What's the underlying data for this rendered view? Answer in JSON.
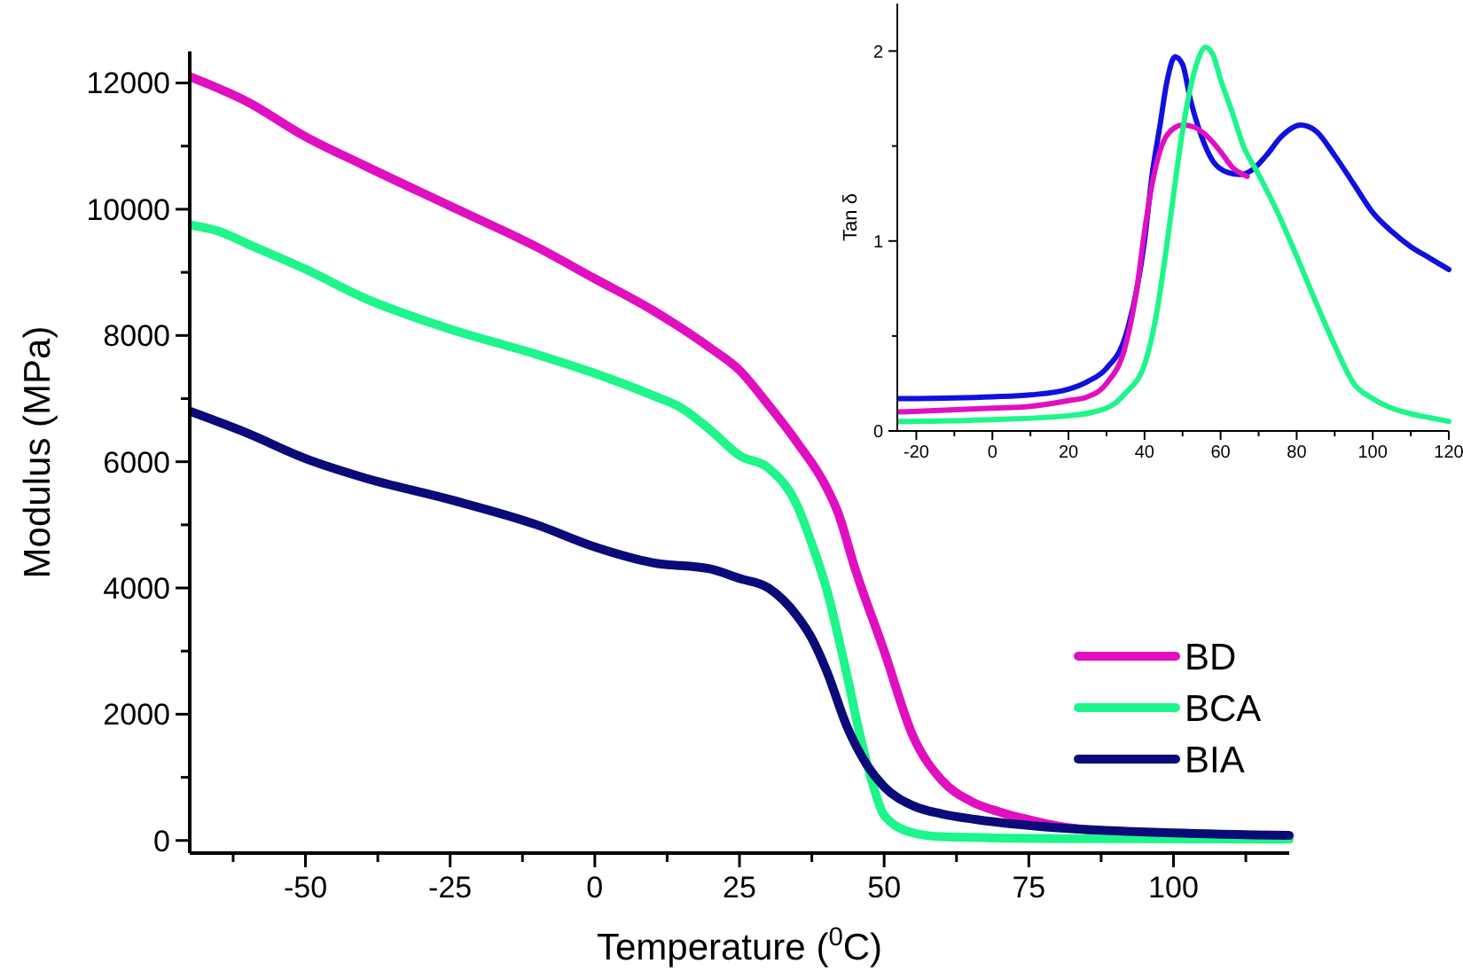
{
  "chart_data": [
    {
      "type": "line",
      "xlabel": "Temperature ($^{0}$C)",
      "ylabel": "Modulus (MPa)",
      "xlim": [
        -70,
        120
      ],
      "ylim": [
        -200,
        12500
      ],
      "xticks": [
        {
          "value": -62.5,
          "label": null
        },
        -50,
        {
          "value": -37.5,
          "label": null
        },
        -25,
        {
          "value": -12.5,
          "label": null
        },
        0,
        {
          "value": 12.5,
          "label": null
        },
        25,
        {
          "value": 37.5,
          "label": null
        },
        50,
        {
          "value": 62.5,
          "label": null
        },
        75,
        {
          "value": 87.5,
          "label": null
        },
        100,
        {
          "value": 112.5,
          "label": null
        }
      ],
      "yticks": [
        0,
        {
          "value": 1000,
          "label": null
        },
        2000,
        {
          "value": 3000,
          "label": null
        },
        4000,
        {
          "value": 5000,
          "label": null
        },
        6000,
        {
          "value": 7000,
          "label": null
        },
        8000,
        {
          "value": 9000,
          "label": null
        },
        10000,
        {
          "value": 11000,
          "label": null
        },
        12000
      ],
      "legend": "right",
      "grid": false,
      "series": [
        {
          "name": "BD",
          "color": "#e010c0",
          "x": [
            -70,
            -60,
            -50,
            -40,
            -25,
            -10,
            0,
            10,
            20,
            25,
            30,
            35,
            40,
            42,
            45,
            50,
            55,
            60,
            65,
            70,
            75,
            80,
            90
          ],
          "values": [
            12100,
            11700,
            11150,
            10700,
            10050,
            9400,
            8900,
            8400,
            7800,
            7450,
            6900,
            6300,
            5600,
            5200,
            4300,
            3000,
            1650,
            950,
            620,
            450,
            330,
            230,
            130
          ]
        },
        {
          "name": "BCA",
          "color": "#1ef58a",
          "x": [
            -70,
            -65,
            -60,
            -50,
            -40,
            -25,
            -10,
            0,
            10,
            15,
            20,
            25,
            30,
            35,
            37.5,
            40,
            43.5,
            46,
            48,
            50,
            55,
            60,
            80,
            120
          ],
          "values": [
            9750,
            9650,
            9450,
            9050,
            8600,
            8100,
            7700,
            7400,
            7050,
            6850,
            6500,
            6100,
            5900,
            5300,
            4700,
            4000,
            2650,
            1600,
            900,
            400,
            120,
            60,
            30,
            20
          ]
        },
        {
          "name": "BIA",
          "color": "#0a0a78",
          "x": [
            -70,
            -60,
            -50,
            -40,
            -25,
            -10,
            0,
            10,
            20,
            25,
            30,
            35,
            37.5,
            40,
            43.6,
            47,
            50,
            55,
            60,
            66,
            80,
            100,
            120
          ],
          "values": [
            6800,
            6450,
            6050,
            5750,
            5400,
            5000,
            4650,
            4400,
            4300,
            4150,
            4000,
            3550,
            3200,
            2700,
            1800,
            1200,
            850,
            550,
            420,
            330,
            200,
            120,
            80
          ]
        }
      ]
    },
    {
      "type": "line",
      "ylabel": "Tan δ",
      "xlim": [
        -25,
        120
      ],
      "ylim": [
        0,
        2.25
      ],
      "xticks": [
        -20,
        {
          "value": -10,
          "label": null
        },
        0,
        {
          "value": 10,
          "label": null
        },
        20,
        {
          "value": 30,
          "label": null
        },
        40,
        {
          "value": 50,
          "label": null
        },
        60,
        {
          "value": 70,
          "label": null
        },
        80,
        {
          "value": 90,
          "label": null
        },
        100,
        {
          "value": 110,
          "label": null
        },
        120
      ],
      "yticks": [
        0,
        {
          "value": 0.5,
          "label": null
        },
        1,
        {
          "value": 1.5,
          "label": null
        },
        2
      ],
      "grid": false,
      "series": [
        {
          "color": "#1010e0",
          "x": [
            -25,
            0,
            10,
            20,
            25,
            30,
            35,
            38,
            40,
            42,
            44,
            46,
            48,
            50,
            52,
            55,
            58,
            62,
            65,
            68,
            72,
            76,
            81,
            85,
            90,
            95,
            100,
            105,
            110,
            115,
            120
          ],
          "values": [
            0.17,
            0.18,
            0.19,
            0.22,
            0.26,
            0.33,
            0.5,
            0.75,
            1.0,
            1.35,
            1.6,
            1.85,
            1.97,
            1.93,
            1.75,
            1.55,
            1.42,
            1.36,
            1.35,
            1.37,
            1.45,
            1.55,
            1.61,
            1.58,
            1.45,
            1.3,
            1.15,
            1.05,
            0.97,
            0.91,
            0.85
          ]
        },
        {
          "color": "#e010c0",
          "x": [
            -25,
            0,
            10,
            20,
            25,
            30,
            35,
            38,
            40,
            42,
            44,
            46,
            50,
            53,
            56,
            60,
            63,
            67
          ],
          "values": [
            0.1,
            0.12,
            0.13,
            0.16,
            0.18,
            0.25,
            0.45,
            0.75,
            1.05,
            1.3,
            1.47,
            1.56,
            1.61,
            1.6,
            1.56,
            1.47,
            1.39,
            1.34
          ]
        },
        {
          "color": "#1ef58a",
          "x": [
            -25,
            0,
            20,
            30,
            35,
            40,
            43,
            46,
            48,
            50,
            52,
            54,
            56,
            58,
            60,
            63,
            66,
            70,
            75,
            80,
            85,
            90,
            95,
            100,
            105,
            110,
            115,
            120
          ],
          "values": [
            0.05,
            0.06,
            0.08,
            0.12,
            0.2,
            0.35,
            0.6,
            1.0,
            1.3,
            1.58,
            1.8,
            1.95,
            2.02,
            1.98,
            1.85,
            1.68,
            1.5,
            1.35,
            1.15,
            0.92,
            0.68,
            0.45,
            0.25,
            0.17,
            0.12,
            0.09,
            0.07,
            0.05
          ]
        }
      ]
    }
  ]
}
